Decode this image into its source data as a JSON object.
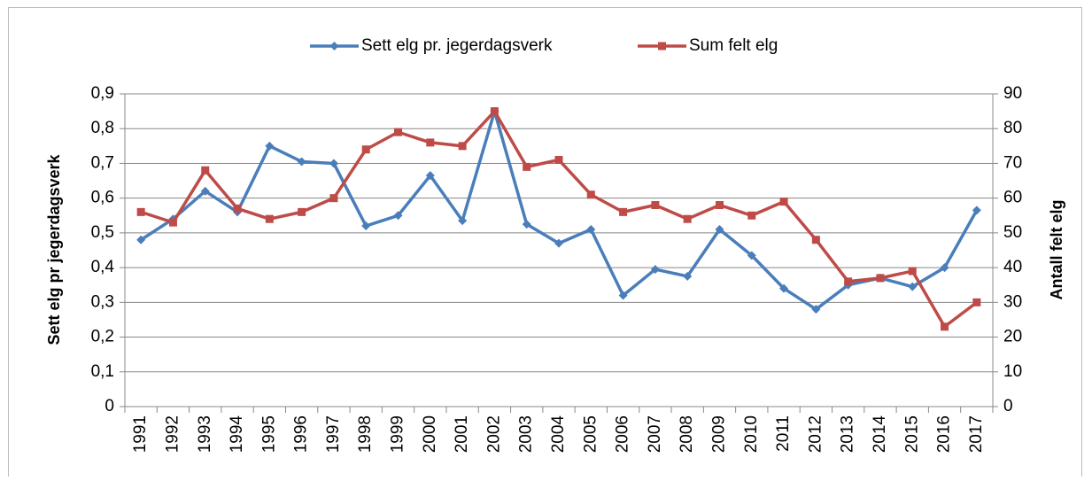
{
  "chart_data": {
    "type": "line",
    "y_label": "Sett elg pr  jegerdagsverk",
    "y2_label": "Antall felt elg",
    "categories": [
      "1991",
      "1992",
      "1993",
      "1994",
      "1995",
      "1996",
      "1997",
      "1998",
      "1999",
      "2000",
      "2001",
      "2002",
      "2003",
      "2004",
      "2005",
      "2006",
      "2007",
      "2008",
      "2009",
      "2010",
      "2011",
      "2012",
      "2013",
      "2014",
      "2015",
      "2016",
      "2017"
    ],
    "series": [
      {
        "name": "Sett elg pr. jegerdagsverk",
        "color": "#4a7ebb",
        "marker": "diamond",
        "values": [
          0.48,
          0.54,
          0.62,
          0.56,
          0.75,
          0.705,
          0.7,
          0.52,
          0.55,
          0.665,
          0.535,
          0.85,
          0.525,
          0.47,
          0.51,
          0.32,
          0.395,
          0.375,
          0.51,
          0.435,
          0.34,
          0.28,
          0.35,
          0.37,
          0.345,
          0.4,
          0.565
        ]
      },
      {
        "name": "Sum felt elg",
        "color": "#be4b48",
        "marker": "square",
        "axis": "y2",
        "values": [
          56,
          53,
          68,
          57,
          54,
          56,
          60,
          74,
          79,
          76,
          75,
          85,
          69,
          71,
          61,
          56,
          58,
          54,
          58,
          55,
          59,
          48,
          36,
          37,
          39,
          23,
          30
        ]
      }
    ],
    "ylim": [
      0,
      0.9
    ],
    "yticks": [
      0,
      {
        "value": 0.1,
        "label": "0,1"
      },
      {
        "value": 0.2,
        "label": "0,2"
      },
      {
        "value": 0.3,
        "label": "0,3"
      },
      {
        "value": 0.4,
        "label": "0,4"
      },
      {
        "value": 0.5,
        "label": "0,5"
      },
      {
        "value": 0.6,
        "label": "0,6"
      },
      {
        "value": 0.7,
        "label": "0,7"
      },
      {
        "value": 0.8,
        "label": "0,8"
      },
      {
        "value": 0.9,
        "label": "0,9"
      }
    ],
    "y2lim": [
      0,
      90
    ],
    "y2ticks": [
      0,
      10,
      20,
      30,
      40,
      50,
      60,
      70,
      80,
      90
    ],
    "grid": true,
    "legend": "top"
  }
}
